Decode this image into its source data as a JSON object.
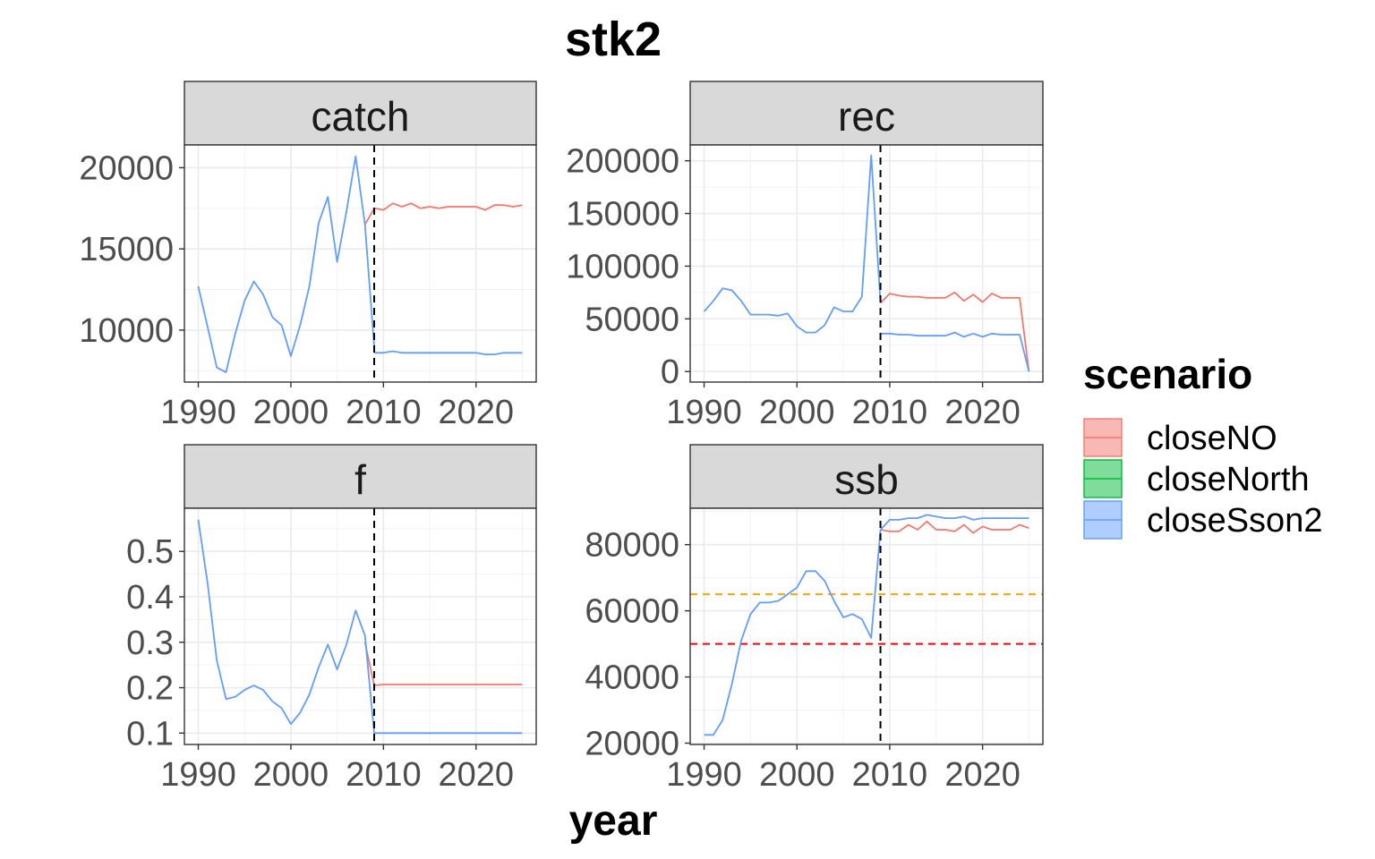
{
  "title": "stk2",
  "xlabel": "year",
  "legend": {
    "title": "scenario",
    "entries": [
      {
        "name": "closeNO",
        "color": "#F8766D",
        "fill": "#F8B8B3"
      },
      {
        "name": "closeNorth",
        "color": "#00BA38",
        "fill": "#80DC9B"
      },
      {
        "name": "closeSson2",
        "color": "#619CFF",
        "fill": "#B0CDFF"
      }
    ]
  },
  "colors": {
    "vline": "#000000",
    "ref_orange": "#FFA500",
    "ref_red": "#FF0000",
    "strip_bg": "#D9D9D9"
  },
  "chart_data": [
    {
      "type": "line",
      "panel": "catch",
      "xlim": [
        1988.5,
        2026.5
      ],
      "ylim": [
        6800,
        21400
      ],
      "xticks": [
        1990,
        2000,
        2010,
        2020
      ],
      "yticks": [
        10000,
        15000,
        20000
      ],
      "vline": 2009,
      "hist_x": [
        1990,
        1991,
        1992,
        1993,
        1994,
        1995,
        1996,
        1997,
        1998,
        1999,
        2000,
        2001,
        2002,
        2003,
        2004,
        2005,
        2006,
        2007,
        2008,
        2009
      ],
      "hist_y": [
        12700,
        10200,
        7700,
        7400,
        9800,
        11800,
        13000,
        12200,
        10800,
        10300,
        8400,
        10300,
        12700,
        16600,
        18200,
        14200,
        17300,
        20700,
        16500,
        9000
      ],
      "series": [
        {
          "name": "closeNO",
          "x": [
            2008,
            2009,
            2010,
            2011,
            2012,
            2013,
            2014,
            2015,
            2016,
            2017,
            2018,
            2019,
            2020,
            2021,
            2022,
            2023,
            2024,
            2025
          ],
          "y": [
            16500,
            17500,
            17400,
            17800,
            17600,
            17800,
            17500,
            17600,
            17500,
            17600,
            17600,
            17600,
            17600,
            17400,
            17700,
            17700,
            17600,
            17700
          ]
        },
        {
          "name": "closeNorth",
          "x": [],
          "y": []
        },
        {
          "name": "closeSson2",
          "x": [
            2009,
            2010,
            2011,
            2012,
            2013,
            2014,
            2015,
            2016,
            2017,
            2018,
            2019,
            2020,
            2021,
            2022,
            2023,
            2024,
            2025
          ],
          "y": [
            8600,
            8600,
            8700,
            8600,
            8600,
            8600,
            8600,
            8600,
            8600,
            8600,
            8600,
            8600,
            8500,
            8500,
            8600,
            8600,
            8600
          ]
        }
      ],
      "hlines": []
    },
    {
      "type": "line",
      "panel": "rec",
      "xlim": [
        1988.5,
        2026.5
      ],
      "ylim": [
        -10000,
        215000
      ],
      "xticks": [
        1990,
        2000,
        2010,
        2020
      ],
      "yticks": [
        0,
        50000,
        100000,
        150000,
        200000
      ],
      "vline": 2009,
      "hist_x": [
        1990,
        1991,
        1992,
        1993,
        1994,
        1995,
        1996,
        1997,
        1998,
        1999,
        2000,
        2001,
        2002,
        2003,
        2004,
        2005,
        2006,
        2007,
        2008,
        2009
      ],
      "hist_y": [
        57000,
        67000,
        79000,
        77000,
        67000,
        54000,
        54000,
        54000,
        53000,
        55000,
        43000,
        37000,
        37000,
        44000,
        61000,
        57000,
        57000,
        71000,
        205000,
        65000
      ],
      "series": [
        {
          "name": "closeNO",
          "x": [
            2009,
            2010,
            2011,
            2012,
            2013,
            2014,
            2015,
            2016,
            2017,
            2018,
            2019,
            2020,
            2021,
            2022,
            2023,
            2024,
            2025
          ],
          "y": [
            65000,
            74000,
            72000,
            71000,
            71000,
            70000,
            70000,
            70000,
            75000,
            67000,
            73000,
            66000,
            74000,
            70000,
            70000,
            70000,
            0
          ]
        },
        {
          "name": "closeNorth",
          "x": [],
          "y": []
        },
        {
          "name": "closeSson2",
          "x": [
            2009,
            2010,
            2011,
            2012,
            2013,
            2014,
            2015,
            2016,
            2017,
            2018,
            2019,
            2020,
            2021,
            2022,
            2023,
            2024,
            2025
          ],
          "y": [
            36000,
            36000,
            35000,
            35000,
            34000,
            34000,
            34000,
            34000,
            37000,
            33000,
            36000,
            33000,
            36000,
            35000,
            35000,
            35000,
            0
          ]
        }
      ],
      "hlines": []
    },
    {
      "type": "line",
      "panel": "f",
      "xlim": [
        1988.5,
        2026.5
      ],
      "ylim": [
        0.075,
        0.595
      ],
      "xticks": [
        1990,
        2000,
        2010,
        2020
      ],
      "yticks": [
        0.1,
        0.2,
        0.3,
        0.4,
        0.5
      ],
      "vline": 2009,
      "hist_x": [
        1990,
        1991,
        1992,
        1993,
        1994,
        1995,
        1996,
        1997,
        1998,
        1999,
        2000,
        2001,
        2002,
        2003,
        2004,
        2005,
        2006,
        2007,
        2008,
        2009
      ],
      "hist_y": [
        0.57,
        0.43,
        0.26,
        0.175,
        0.18,
        0.195,
        0.205,
        0.195,
        0.17,
        0.155,
        0.12,
        0.145,
        0.185,
        0.245,
        0.295,
        0.24,
        0.295,
        0.37,
        0.315,
        0.1
      ],
      "series": [
        {
          "name": "closeNO",
          "x": [
            2008,
            2009,
            2010,
            2011,
            2012,
            2013,
            2014,
            2015,
            2016,
            2017,
            2018,
            2019,
            2020,
            2021,
            2022,
            2023,
            2024,
            2025
          ],
          "y": [
            0.3,
            0.205,
            0.207,
            0.207,
            0.207,
            0.207,
            0.207,
            0.207,
            0.207,
            0.207,
            0.207,
            0.207,
            0.207,
            0.207,
            0.207,
            0.207,
            0.207,
            0.207
          ]
        },
        {
          "name": "closeNorth",
          "x": [],
          "y": []
        },
        {
          "name": "closeSson2",
          "x": [
            2009,
            2010,
            2011,
            2012,
            2013,
            2014,
            2015,
            2016,
            2017,
            2018,
            2019,
            2020,
            2021,
            2022,
            2023,
            2024,
            2025
          ],
          "y": [
            0.1,
            0.1,
            0.1,
            0.1,
            0.1,
            0.1,
            0.1,
            0.1,
            0.1,
            0.1,
            0.1,
            0.1,
            0.1,
            0.1,
            0.1,
            0.1,
            0.1
          ]
        }
      ],
      "hlines": []
    },
    {
      "type": "line",
      "panel": "ssb",
      "xlim": [
        1988.5,
        2026.5
      ],
      "ylim": [
        19600,
        91000
      ],
      "xticks": [
        1990,
        2000,
        2010,
        2020
      ],
      "yticks": [
        20000,
        40000,
        60000,
        80000
      ],
      "vline": 2009,
      "hist_x": [
        1990,
        1991,
        1992,
        1993,
        1994,
        1995,
        1996,
        1997,
        1998,
        1999,
        2000,
        2001,
        2002,
        2003,
        2004,
        2005,
        2006,
        2007,
        2008,
        2009
      ],
      "hist_y": [
        22500,
        22500,
        27000,
        38000,
        51000,
        59000,
        62500,
        62500,
        63000,
        65000,
        67000,
        72000,
        72000,
        69000,
        63000,
        58000,
        59000,
        57500,
        51800,
        84500
      ],
      "series": [
        {
          "name": "closeNO",
          "x": [
            2009,
            2010,
            2011,
            2012,
            2013,
            2014,
            2015,
            2016,
            2017,
            2018,
            2019,
            2020,
            2021,
            2022,
            2023,
            2024,
            2025
          ],
          "y": [
            84500,
            84000,
            84000,
            86000,
            84500,
            87000,
            84500,
            84500,
            84000,
            86000,
            83500,
            85500,
            84500,
            84500,
            84500,
            86000,
            85000
          ]
        },
        {
          "name": "closeNorth",
          "x": [],
          "y": []
        },
        {
          "name": "closeSson2",
          "x": [
            2009,
            2010,
            2011,
            2012,
            2013,
            2014,
            2015,
            2016,
            2017,
            2018,
            2019,
            2020,
            2021,
            2022,
            2023,
            2024,
            2025
          ],
          "y": [
            84500,
            87500,
            87500,
            88000,
            88000,
            89000,
            88500,
            88000,
            88000,
            88500,
            87500,
            88000,
            88000,
            88000,
            88000,
            88000,
            88000
          ]
        }
      ],
      "hlines": [
        {
          "y": 65000,
          "color": "#FFA500"
        },
        {
          "y": 50000,
          "color": "#FF0000"
        }
      ]
    }
  ]
}
